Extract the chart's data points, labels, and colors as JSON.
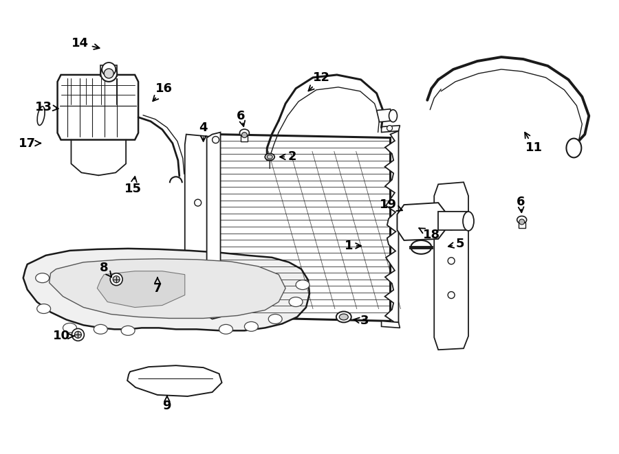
{
  "bg": "#ffffff",
  "lc": "#1a1a1a",
  "lw_main": 1.4,
  "lw_thick": 2.2,
  "lw_thin": 0.8,
  "fig_w": 9.0,
  "fig_h": 6.61,
  "label_fs": 13,
  "arrow_lw": 1.3,
  "labels": {
    "1": [
      507,
      358,
      530,
      358
    ],
    "2": [
      425,
      228,
      400,
      228
    ],
    "3": [
      530,
      468,
      505,
      462
    ],
    "4": [
      295,
      185,
      312,
      210
    ],
    "5": [
      670,
      355,
      648,
      360
    ],
    "6a": [
      355,
      172,
      355,
      192
    ],
    "6b": [
      760,
      298,
      760,
      318
    ],
    "7": [
      228,
      418,
      228,
      400
    ],
    "8": [
      153,
      392,
      170,
      405
    ],
    "9": [
      242,
      590,
      242,
      567
    ],
    "10": [
      95,
      488,
      115,
      488
    ],
    "11": [
      778,
      210,
      770,
      185
    ],
    "12": [
      468,
      115,
      458,
      135
    ],
    "13": [
      72,
      155,
      100,
      160
    ],
    "14": [
      118,
      62,
      148,
      72
    ],
    "15": [
      190,
      272,
      196,
      253
    ],
    "16": [
      240,
      128,
      222,
      150
    ],
    "17": [
      45,
      208,
      68,
      208
    ],
    "18": [
      628,
      340,
      608,
      328
    ],
    "19": [
      568,
      298,
      592,
      305
    ]
  }
}
